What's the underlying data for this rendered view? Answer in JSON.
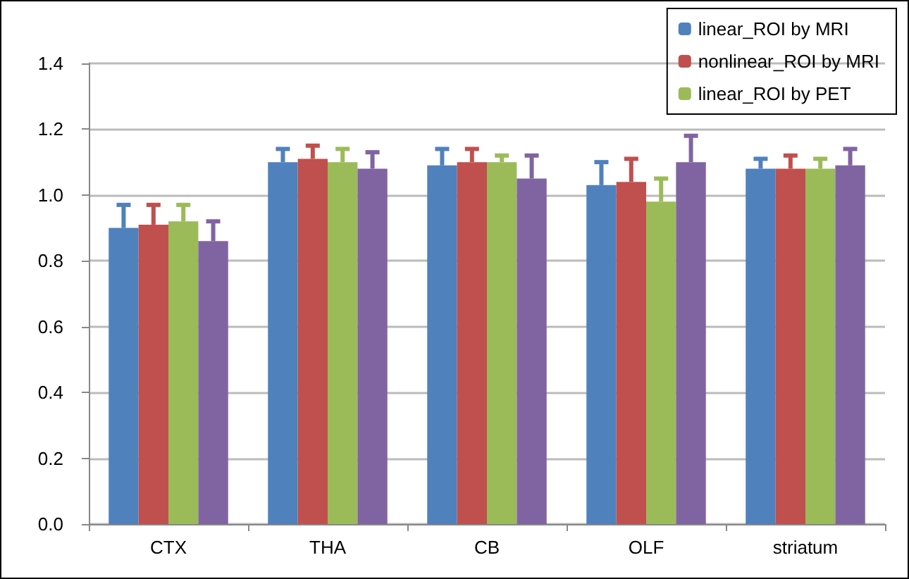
{
  "chart_data": {
    "type": "bar",
    "categories": [
      "CTX",
      "THA",
      "CB",
      "OLF",
      "striatum"
    ],
    "series": [
      {
        "name": "linear_ROI by MRI",
        "color": "#4f81bd",
        "values": [
          0.9,
          1.1,
          1.09,
          1.03,
          1.08
        ],
        "errors": [
          [
            0.9,
            0.97
          ],
          [
            1.1,
            1.14
          ],
          [
            1.09,
            1.14
          ],
          [
            1.03,
            1.1
          ],
          [
            1.08,
            1.11
          ]
        ]
      },
      {
        "name": "nonlinear_ROI by MRI",
        "color": "#c0504d",
        "values": [
          0.91,
          1.11,
          1.1,
          1.04,
          1.08
        ],
        "errors": [
          [
            0.91,
            0.97
          ],
          [
            1.11,
            1.15
          ],
          [
            1.1,
            1.14
          ],
          [
            1.04,
            1.11
          ],
          [
            1.08,
            1.12
          ]
        ]
      },
      {
        "name": "linear_ROI by PET",
        "color": "#9bbb59",
        "values": [
          0.92,
          1.1,
          1.1,
          0.98,
          1.08
        ],
        "errors": [
          [
            0.92,
            0.97
          ],
          [
            1.1,
            1.14
          ],
          [
            1.1,
            1.12
          ],
          [
            0.98,
            1.05
          ],
          [
            1.08,
            1.11
          ]
        ]
      },
      {
        "color": "#8064a2",
        "values": [
          0.86,
          1.08,
          1.05,
          1.1,
          1.09
        ],
        "errors": [
          [
            0.86,
            0.92
          ],
          [
            1.08,
            1.13
          ],
          [
            1.05,
            1.12
          ],
          [
            1.1,
            1.18
          ],
          [
            1.09,
            1.14
          ]
        ]
      }
    ],
    "ylim": [
      0,
      1.4
    ],
    "yticks": [
      {
        "value": 0,
        "label": "0.0"
      },
      0.2,
      0.4,
      0.6,
      0.8,
      {
        "value": 1,
        "label": "1.0"
      },
      1.2,
      1.4
    ],
    "grid": "y",
    "legend": "top right"
  }
}
